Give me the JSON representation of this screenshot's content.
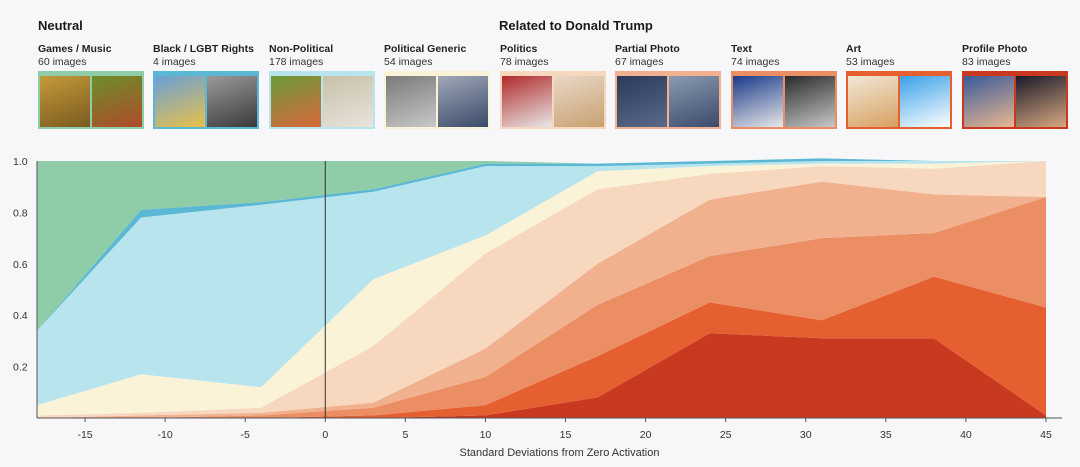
{
  "header": {
    "neutral_title": "Neutral",
    "trump_title": "Related to Donald Trump"
  },
  "categories": [
    {
      "name": "Games / Music",
      "count": "60 images",
      "color": "#8fcca8",
      "thumbs": [
        [
          "#c49a3a",
          "#7a5a20"
        ],
        [
          "#6b8f2a",
          "#b04a2a"
        ]
      ],
      "icon": "game-thumbnail"
    },
    {
      "name": "Black / LGBT Rights",
      "count": "4 images",
      "color": "#5ab8d4",
      "thumbs": [
        [
          "#6aa0d8",
          "#e8c04a"
        ],
        [
          "#9a9a9a",
          "#3a3a3a"
        ]
      ],
      "icon": "rights-thumbnail"
    },
    {
      "name": "Non-Political",
      "count": "178 images",
      "color": "#b8e4ee",
      "thumbs": [
        [
          "#6a9a3a",
          "#d8683a"
        ],
        [
          "#c8c0a8",
          "#e8e4dc"
        ]
      ],
      "icon": "nature-thumbnail"
    },
    {
      "name": "Political Generic",
      "count": "54 images",
      "color": "#fbf3d8",
      "thumbs": [
        [
          "#7a7a7a",
          "#c8c8c8"
        ],
        [
          "#a0a8b8",
          "#3a4a6a"
        ]
      ],
      "icon": "generic-thumbnail"
    },
    {
      "name": "Politics",
      "count": "78 images",
      "color": "#f7d8bf",
      "thumbs": [
        [
          "#b02a2a",
          "#e8e8e8"
        ],
        [
          "#e8d8c8",
          "#c8a070"
        ]
      ],
      "icon": "politics-thumbnail"
    },
    {
      "name": "Partial Photo",
      "count": "67 images",
      "color": "#f2b18e",
      "thumbs": [
        [
          "#2a3a5a",
          "#5a6a8a"
        ],
        [
          "#8a9ab0",
          "#3a4a6a"
        ]
      ],
      "icon": "partial-photo-thumbnail"
    },
    {
      "name": "Text",
      "count": "74 images",
      "color": "#ec8e63",
      "thumbs": [
        [
          "#1a3a8a",
          "#e8e8e8"
        ],
        [
          "#2a2a2a",
          "#c8c8c8"
        ]
      ],
      "icon": "text-thumbnail"
    },
    {
      "name": "Art",
      "count": "53 images",
      "color": "#e65f31",
      "thumbs": [
        [
          "#f0e8d8",
          "#d8a060"
        ],
        [
          "#3aa0e8",
          "#ffffff"
        ]
      ],
      "icon": "art-thumbnail"
    },
    {
      "name": "Profile Photo",
      "count": "83 images",
      "color": "#c9391f",
      "thumbs": [
        [
          "#3a5a9a",
          "#e8b890"
        ],
        [
          "#1a1a2a",
          "#d8a880"
        ]
      ],
      "icon": "profile-photo-thumbnail"
    }
  ],
  "chart_data": {
    "type": "area",
    "stacked": true,
    "x": [
      -18,
      -11.5,
      -4,
      3,
      10,
      17,
      24,
      31,
      38,
      45
    ],
    "xlabel": "Standard Deviations from Zero Activation",
    "xticks": [
      -15,
      -10,
      -5,
      0,
      5,
      10,
      15,
      20,
      25,
      30,
      35,
      40,
      45
    ],
    "yticks": [
      0.2,
      0.4,
      0.6,
      0.8,
      1.0
    ],
    "ytick_labels": [
      "0.2",
      "0.4",
      "0.6",
      "0.8",
      "1.0"
    ],
    "xlim": [
      -18,
      46
    ],
    "ylim": [
      0,
      1
    ],
    "zero_line_x": 0,
    "series": [
      {
        "name": "Profile Photo",
        "values": [
          0,
          0,
          0,
          0,
          0.01,
          0.08,
          0.33,
          0.31,
          0.31,
          0.01
        ]
      },
      {
        "name": "Art",
        "values": [
          0,
          0,
          0,
          0.01,
          0.04,
          0.16,
          0.12,
          0.07,
          0.24,
          0.42
        ]
      },
      {
        "name": "Text",
        "values": [
          0,
          0,
          0.01,
          0.03,
          0.11,
          0.2,
          0.18,
          0.32,
          0.17,
          0.43
        ]
      },
      {
        "name": "Partial Photo",
        "values": [
          0,
          0.01,
          0.01,
          0.02,
          0.11,
          0.16,
          0.22,
          0.22,
          0.15,
          0
        ]
      },
      {
        "name": "Politics",
        "values": [
          0.01,
          0.01,
          0.02,
          0.22,
          0.37,
          0.29,
          0.1,
          0.06,
          0.1,
          0.14
        ]
      },
      {
        "name": "Political Generic",
        "values": [
          0.04,
          0.15,
          0.08,
          0.26,
          0.07,
          0.07,
          0.03,
          0.01,
          0.02,
          0
        ]
      },
      {
        "name": "Non-Political",
        "values": [
          0.29,
          0.61,
          0.71,
          0.34,
          0.27,
          0.02,
          0.01,
          0.01,
          0.01,
          0
        ]
      },
      {
        "name": "Black / LGBT Rights",
        "values": [
          0,
          0.03,
          0.01,
          0.01,
          0.01,
          0.01,
          0.01,
          0.01,
          0,
          0
        ]
      },
      {
        "name": "Games / Music",
        "values": [
          0.66,
          0.19,
          0.16,
          0.11,
          0.01,
          0.0,
          0.0,
          0.0,
          0.0,
          0
        ]
      }
    ]
  }
}
